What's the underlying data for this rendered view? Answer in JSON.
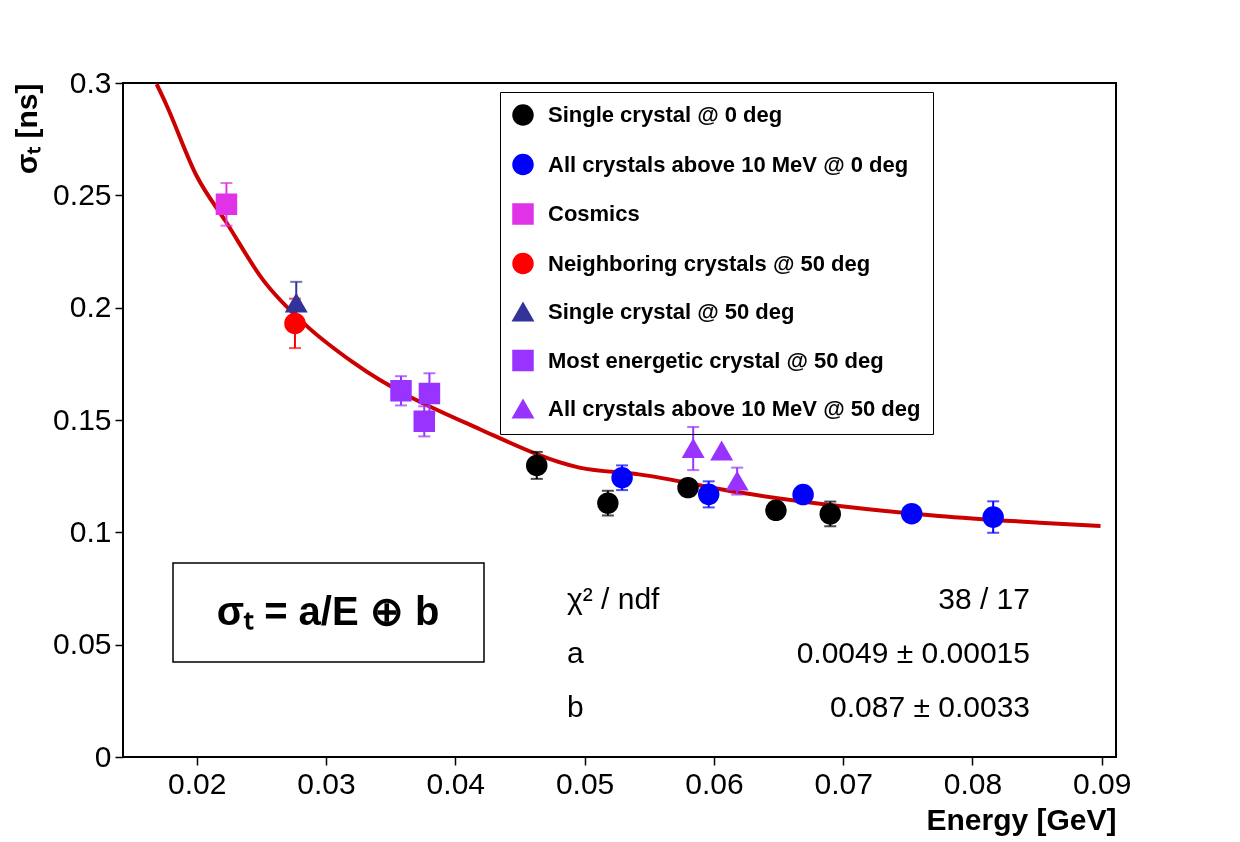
{
  "chart_data": {
    "type": "scatter",
    "xlabel": "Energy [GeV]",
    "ylabel": "σₜ [ns]",
    "xlim": [
      0.0143,
      0.0911
    ],
    "ylim": [
      0,
      0.3
    ],
    "xticks": [
      0.02,
      0.03,
      0.04,
      0.05,
      0.06,
      0.07,
      0.08,
      0.09
    ],
    "yticks": [
      0,
      0.05,
      0.1,
      0.15,
      0.2,
      0.25,
      0.3
    ],
    "grid": false,
    "legend": "top right",
    "annotations": [
      "σₜ = a/E ⊕ b",
      "χ² / ndf",
      "38 / 17",
      "a",
      "0.0049 ± 0.00015",
      "b",
      "0.087 ± 0.0033"
    ],
    "series": [
      {
        "name": "Single crystal @ 0 deg",
        "color": "#000000",
        "marker": "circle",
        "x": [
          0.0463,
          0.0518,
          0.058,
          0.0648,
          0.069
        ],
        "values": [
          0.1298,
          0.113,
          0.1199,
          0.1098,
          0.1082
        ],
        "errors": [
          0.006,
          0.0055,
          null,
          null,
          0.0055
        ]
      },
      {
        "name": "All crystals above 10 MeV @ 0 deg",
        "color": "#0000ff",
        "marker": "circle",
        "x": [
          0.0529,
          0.0596,
          0.0669,
          0.0753,
          0.0816
        ],
        "values": [
          0.1243,
          0.1169,
          0.1168,
          0.1083,
          0.1068
        ],
        "errors": [
          0.0055,
          0.0058,
          null,
          null,
          0.007
        ]
      },
      {
        "name": "Cosmics",
        "color": "#e033e8",
        "marker": "square",
        "x": [
          0.0223
        ],
        "values": [
          0.246
        ],
        "errors": [
          0.0095
        ]
      },
      {
        "name": "Neighboring crystals @ 50 deg",
        "color": "#ff0000",
        "marker": "circle",
        "x": [
          0.0276
        ],
        "values": [
          0.193
        ],
        "errors": [
          0.011
        ]
      },
      {
        "name": "Single crystal @ 50 deg",
        "color": "#333399",
        "marker": "triangle",
        "x": [
          0.0277
        ],
        "values": [
          0.202
        ],
        "errors": [
          0.0095
        ]
      },
      {
        "name": "Most energetic crystal @ 50 deg",
        "color": "#9933ff",
        "marker": "square",
        "x": [
          0.0358,
          0.0376,
          0.038
        ],
        "values": [
          0.163,
          0.1494,
          0.1618
        ],
        "errors": [
          0.0065,
          0.0067,
          0.009
        ]
      },
      {
        "name": "All crystals above 10 MeV @ 50 deg",
        "color": "#9933ff",
        "marker": "triangle",
        "x": [
          0.0584,
          0.0606,
          0.0618
        ],
        "values": [
          0.1373,
          0.1362,
          0.1228
        ],
        "errors": [
          0.0096,
          null,
          0.006
        ]
      },
      {
        "type": "line",
        "color": "#cc0000",
        "x": [
          0.0169,
          0.0176,
          0.02,
          0.0223,
          0.0251,
          0.0285,
          0.0321,
          0.0419,
          0.0496,
          0.0542,
          0.062,
          0.0697,
          0.0774,
          0.0852,
          0.0899
        ],
        "values": [
          0.2995,
          0.291,
          0.2586,
          0.2379,
          0.2126,
          0.1919,
          0.1756,
          0.1459,
          0.1288,
          0.1258,
          0.1177,
          0.1117,
          0.1073,
          0.1043,
          0.1028
        ]
      }
    ]
  }
}
